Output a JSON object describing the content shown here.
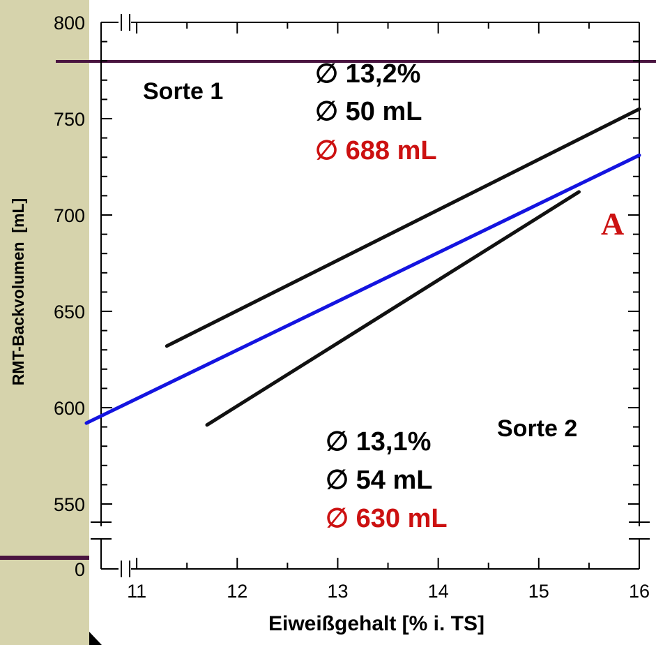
{
  "colors": {
    "page_background": "#d6d3ac",
    "plot_background": "#ffffff",
    "line_black": "#111111",
    "line_blue": "#1414e0",
    "accent_red": "#cc1111",
    "rule_line": "#4a1440"
  },
  "chart_data": {
    "type": "line",
    "xlabel": "Eiweißgehalt [% i. TS]",
    "ylabel": "RMT-Backvolumen  [mL]",
    "xlim": [
      10.5,
      16
    ],
    "ylim": [
      540,
      800
    ],
    "axis_break": "y-axis broken between 0 and 540",
    "x_ticks": [
      "11",
      "12",
      "13",
      "14",
      "15",
      "16"
    ],
    "y_ticks": [
      "800",
      "750",
      "700",
      "650",
      "600",
      "550",
      "0"
    ],
    "grid": false,
    "series": [
      {
        "x": [
          11.3,
          16.0
        ],
        "y": [
          632,
          755
        ],
        "color": "#111111"
      },
      {
        "x": [
          10.5,
          16.0
        ],
        "y": [
          592,
          731
        ],
        "color": "#1414e0"
      },
      {
        "x": [
          11.7,
          15.4
        ],
        "y": [
          591,
          712
        ],
        "color": "#111111"
      }
    ],
    "annotations": {
      "sorte1_label": "Sorte 1",
      "sorte1_stats": [
        "∅ 13,2%",
        "∅ 50 mL",
        "∅ 688 mL"
      ],
      "sorte2_label": "Sorte 2",
      "sorte2_stats": [
        "∅ 13,1%",
        "∅ 54 mL",
        "∅ 630 mL"
      ],
      "panel_letter": "A"
    }
  }
}
